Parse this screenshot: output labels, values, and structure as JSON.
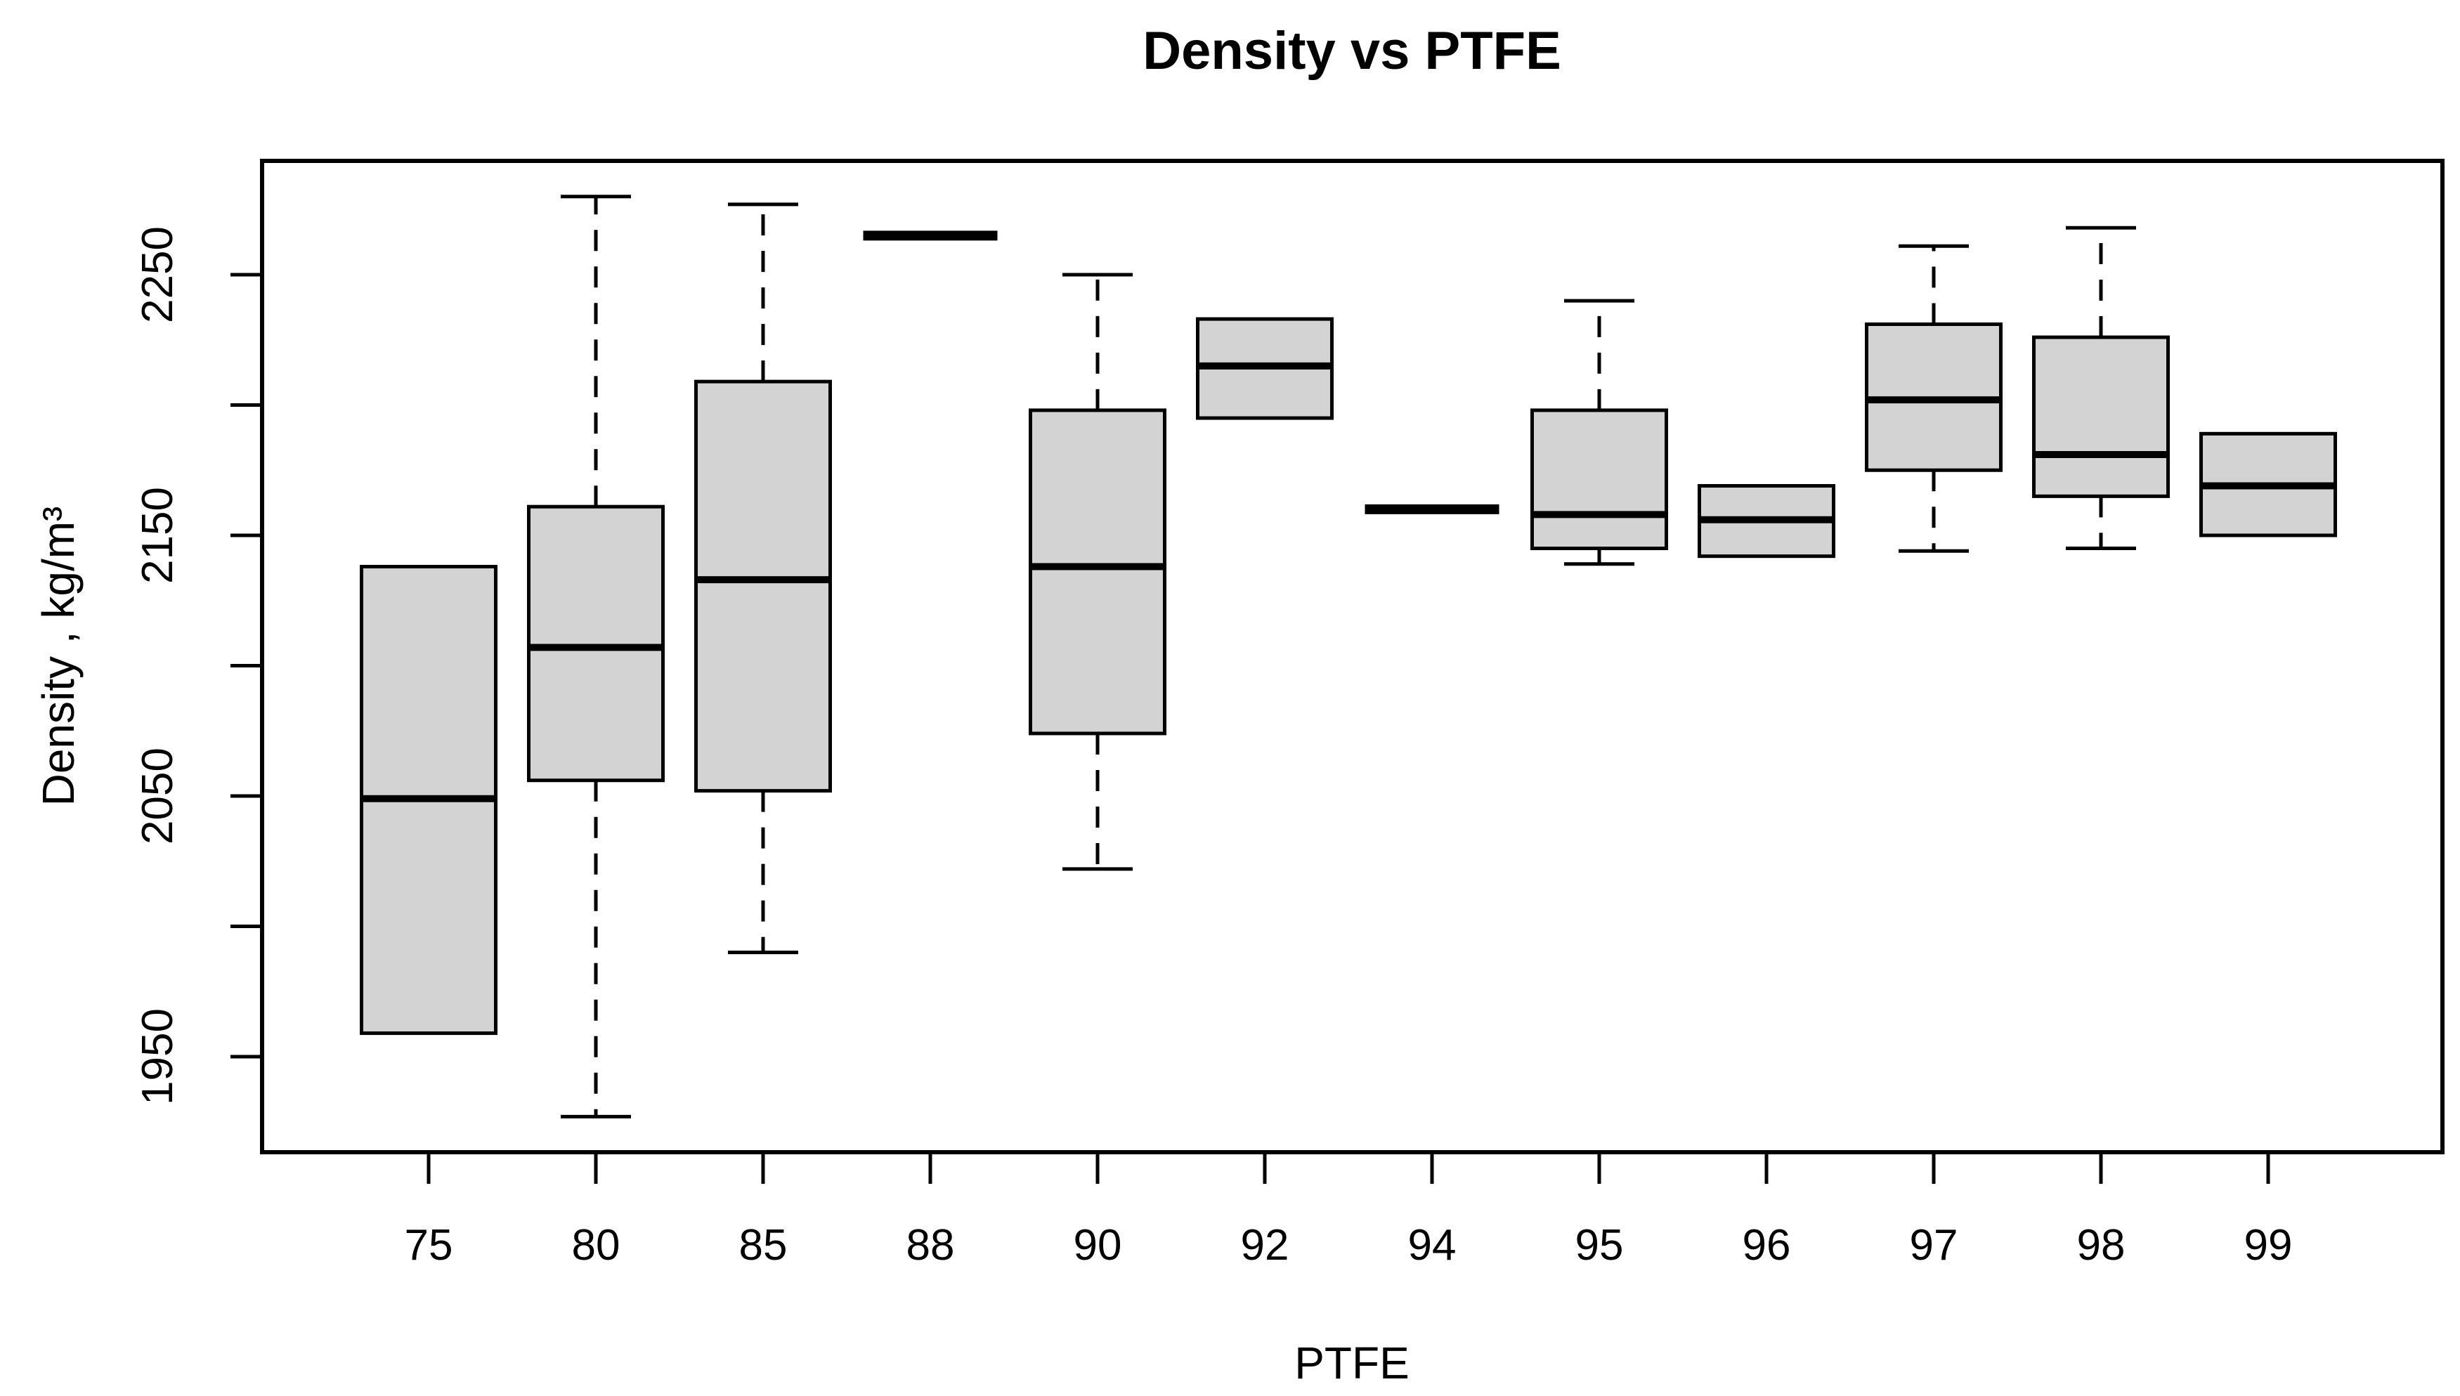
{
  "chart_data": {
    "type": "boxplot",
    "title": "Density vs PTFE",
    "xlabel": "PTFE",
    "ylabel": "Density , kg/m³",
    "categories": [
      "75",
      "80",
      "85",
      "88",
      "90",
      "92",
      "94",
      "95",
      "96",
      "97",
      "98",
      "99"
    ],
    "series": [
      {
        "category": "75",
        "low": 1959,
        "q1": 1959,
        "median": 2049,
        "q3": 2138,
        "high": 2138
      },
      {
        "category": "80",
        "low": 1927,
        "q1": 2056,
        "median": 2107,
        "q3": 2161,
        "high": 2280
      },
      {
        "category": "85",
        "low": 1990,
        "q1": 2052,
        "median": 2133,
        "q3": 2209,
        "high": 2277
      },
      {
        "category": "88",
        "low": 2265,
        "q1": 2265,
        "median": 2265,
        "q3": 2265,
        "high": 2265
      },
      {
        "category": "90",
        "low": 2022,
        "q1": 2074,
        "median": 2138,
        "q3": 2198,
        "high": 2250
      },
      {
        "category": "92",
        "low": 2195,
        "q1": 2195,
        "median": 2215,
        "q3": 2233,
        "high": 2233
      },
      {
        "category": "94",
        "low": 2160,
        "q1": 2160,
        "median": 2160,
        "q3": 2160,
        "high": 2160
      },
      {
        "category": "95",
        "low": 2139,
        "q1": 2145,
        "median": 2158,
        "q3": 2198,
        "high": 2240
      },
      {
        "category": "96",
        "low": 2142,
        "q1": 2142,
        "median": 2156,
        "q3": 2169,
        "high": 2169
      },
      {
        "category": "97",
        "low": 2144,
        "q1": 2175,
        "median": 2202,
        "q3": 2231,
        "high": 2261
      },
      {
        "category": "98",
        "low": 2145,
        "q1": 2165,
        "median": 2181,
        "q3": 2226,
        "high": 2268
      },
      {
        "category": "99",
        "low": 2150,
        "q1": 2150,
        "median": 2169,
        "q3": 2189,
        "high": 2189
      }
    ],
    "y_axis": {
      "range": [
        1913,
        2294
      ],
      "tick_step": 50,
      "ticks": [
        1950,
        2000,
        2050,
        2100,
        2150,
        2200,
        2250
      ],
      "labeled_ticks": [
        1950,
        2050,
        2150,
        2250
      ]
    },
    "x_axis": {
      "ticks": [
        "75",
        "80",
        "85",
        "88",
        "90",
        "92",
        "94",
        "95",
        "96",
        "97",
        "98",
        "99"
      ]
    },
    "legend": "none",
    "grid": false,
    "colors": {
      "box_fill": "#d3d3d3",
      "line": "#000000",
      "background": "#ffffff"
    }
  }
}
